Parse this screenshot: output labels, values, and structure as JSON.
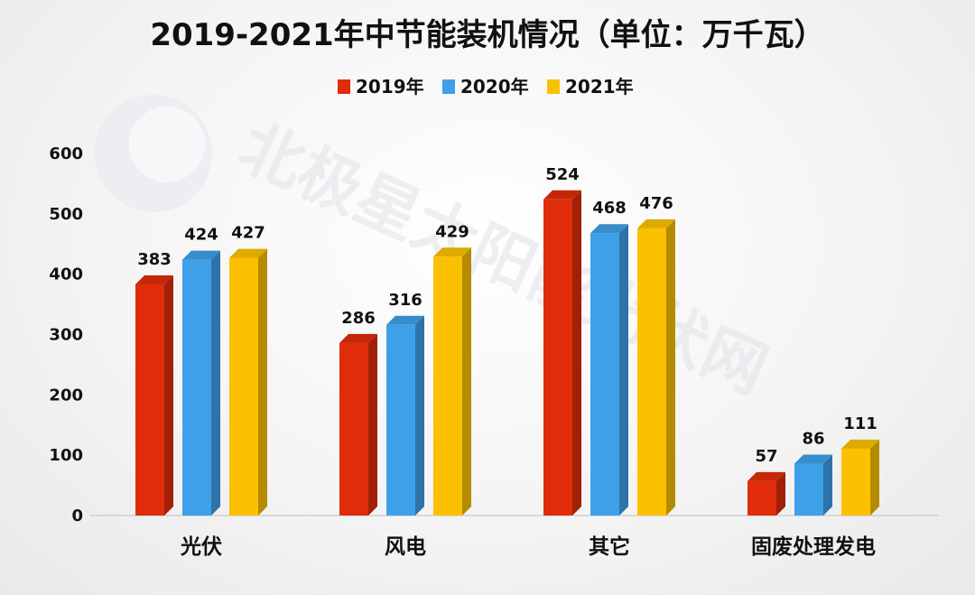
{
  "chart_data": {
    "type": "bar",
    "title": "2019-2021年中节能装机情况（单位：万千瓦）",
    "categories": [
      "光伏",
      "风电",
      "其它",
      "固废处理发电"
    ],
    "series": [
      {
        "name": "2019年",
        "color": "#e02c0a",
        "values": [
          383,
          286,
          524,
          57
        ]
      },
      {
        "name": "2020年",
        "color": "#3ea0e8",
        "values": [
          424,
          316,
          468,
          86
        ]
      },
      {
        "name": "2021年",
        "color": "#fbc100",
        "values": [
          427,
          429,
          476,
          111
        ]
      }
    ],
    "ylim": [
      0,
      600
    ],
    "yticks": [
      "0",
      "100",
      "200",
      "300",
      "400",
      "500",
      "600"
    ],
    "grid": false,
    "legend": "top-center",
    "watermark": "北极星太阳能光伏网"
  }
}
